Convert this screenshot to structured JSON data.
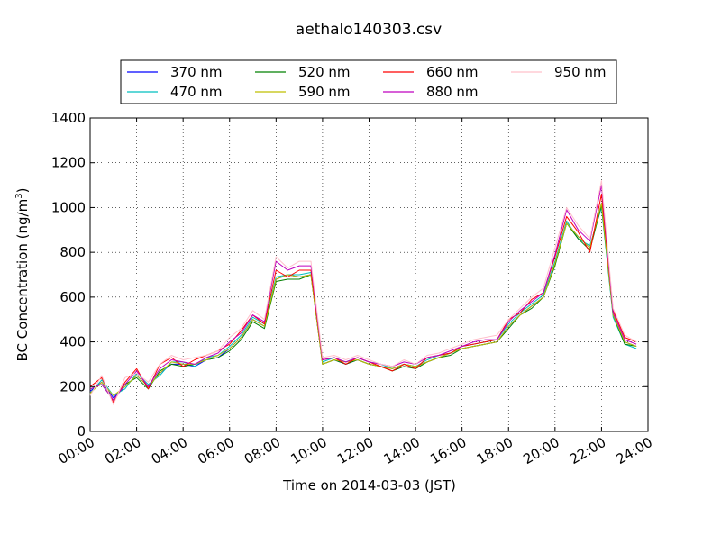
{
  "chart_data": {
    "type": "line",
    "title": "aethalo140303.csv",
    "xlabel": "Time on 2014-03-03 (JST)",
    "ylabel_main": "BC Concentration (ng/m",
    "ylabel_sup": "3",
    "ylabel_tail": ")",
    "xlim": [
      "00:00",
      "24:00"
    ],
    "ylim": [
      0,
      1400
    ],
    "x_ticks": [
      "00:00",
      "02:00",
      "04:00",
      "06:00",
      "08:00",
      "10:00",
      "12:00",
      "14:00",
      "16:00",
      "18:00",
      "20:00",
      "22:00",
      "24:00"
    ],
    "y_ticks": [
      "0",
      "200",
      "400",
      "600",
      "800",
      "1000",
      "1200",
      "1400"
    ],
    "grid": true,
    "legend_placement": "top-center, above plot",
    "time_points": [
      "00:00",
      "00:30",
      "01:00",
      "01:30",
      "02:00",
      "02:30",
      "03:00",
      "03:30",
      "04:00",
      "04:30",
      "05:00",
      "05:30",
      "06:00",
      "06:30",
      "07:00",
      "07:30",
      "08:00",
      "08:30",
      "09:00",
      "09:30",
      "10:00",
      "10:30",
      "11:00",
      "11:30",
      "12:00",
      "12:30",
      "13:00",
      "13:30",
      "14:00",
      "14:30",
      "15:00",
      "15:30",
      "16:00",
      "16:30",
      "17:00",
      "17:30",
      "18:00",
      "18:30",
      "19:00",
      "19:30",
      "20:00",
      "20:30",
      "21:00",
      "21:30",
      "22:00",
      "22:30",
      "23:00",
      "23:30"
    ],
    "series": [
      {
        "name": "370 nm",
        "color": "#0000ff",
        "values": [
          180,
          220,
          150,
          200,
          250,
          200,
          260,
          300,
          300,
          290,
          320,
          330,
          370,
          420,
          500,
          470,
          680,
          700,
          690,
          700,
          300,
          320,
          300,
          320,
          300,
          290,
          280,
          300,
          290,
          310,
          330,
          350,
          370,
          380,
          390,
          400,
          470,
          520,
          560,
          600,
          750,
          930,
          870,
          820,
          1020,
          520,
          400,
          380
        ]
      },
      {
        "name": "470 nm",
        "color": "#00bfbf",
        "values": [
          170,
          230,
          160,
          190,
          260,
          210,
          250,
          310,
          310,
          290,
          330,
          340,
          380,
          430,
          510,
          480,
          690,
          700,
          700,
          710,
          310,
          330,
          310,
          330,
          310,
          300,
          280,
          300,
          290,
          320,
          340,
          350,
          380,
          390,
          400,
          410,
          480,
          530,
          570,
          610,
          760,
          940,
          860,
          830,
          1000,
          510,
          390,
          370
        ]
      },
      {
        "name": "520 nm",
        "color": "#008000",
        "values": [
          190,
          210,
          140,
          210,
          240,
          190,
          270,
          300,
          290,
          300,
          320,
          330,
          360,
          410,
          490,
          460,
          670,
          680,
          680,
          700,
          300,
          320,
          300,
          320,
          300,
          290,
          270,
          290,
          280,
          310,
          330,
          340,
          370,
          380,
          390,
          400,
          460,
          520,
          550,
          600,
          740,
          930,
          860,
          810,
          1010,
          520,
          390,
          380
        ]
      },
      {
        "name": "590 nm",
        "color": "#bfbf00",
        "values": [
          170,
          220,
          160,
          200,
          250,
          200,
          260,
          310,
          300,
          300,
          320,
          340,
          370,
          420,
          500,
          470,
          680,
          700,
          690,
          700,
          300,
          320,
          310,
          320,
          300,
          290,
          280,
          300,
          290,
          310,
          330,
          350,
          370,
          380,
          390,
          400,
          470,
          520,
          560,
          600,
          750,
          930,
          870,
          820,
          1020,
          520,
          400,
          380
        ]
      },
      {
        "name": "660 nm",
        "color": "#ff0000",
        "values": [
          200,
          240,
          130,
          220,
          280,
          190,
          300,
          330,
          290,
          320,
          340,
          360,
          390,
          450,
          520,
          480,
          720,
          690,
          720,
          720,
          320,
          330,
          300,
          330,
          310,
          290,
          270,
          300,
          280,
          330,
          340,
          350,
          380,
          390,
          400,
          410,
          500,
          530,
          590,
          620,
          780,
          960,
          890,
          800,
          1060,
          540,
          420,
          400
        ]
      },
      {
        "name": "880 nm",
        "color": "#bf00bf",
        "values": [
          190,
          210,
          140,
          210,
          270,
          200,
          280,
          320,
          310,
          300,
          330,
          350,
          400,
          440,
          520,
          490,
          760,
          720,
          740,
          740,
          320,
          330,
          310,
          330,
          310,
          300,
          290,
          310,
          300,
          330,
          340,
          360,
          380,
          400,
          410,
          410,
          490,
          540,
          580,
          620,
          790,
          990,
          900,
          850,
          1100,
          530,
          410,
          390
        ]
      },
      {
        "name": "950 nm",
        "color": "#ffc0cb",
        "values": [
          160,
          250,
          120,
          240,
          260,
          220,
          300,
          340,
          320,
          330,
          340,
          360,
          420,
          460,
          540,
          500,
          780,
          730,
          760,
          760,
          330,
          340,
          320,
          340,
          320,
          300,
          290,
          320,
          300,
          340,
          350,
          370,
          390,
          410,
          420,
          430,
          500,
          550,
          600,
          640,
          820,
          1000,
          920,
          860,
          1120,
          550,
          430,
          400
        ]
      }
    ]
  }
}
